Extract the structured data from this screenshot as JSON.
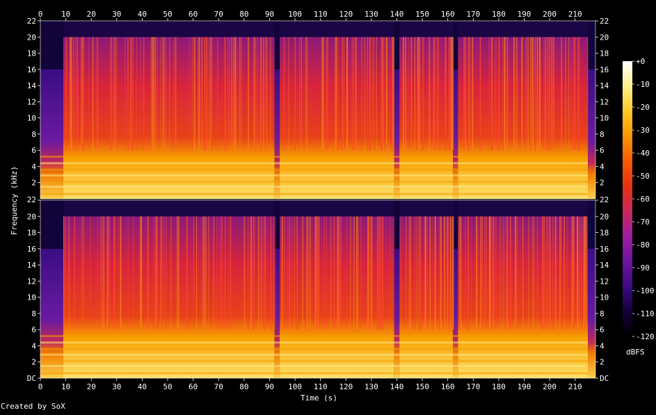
{
  "chart_data": {
    "type": "heatmap",
    "title": "",
    "xlabel": "Time (s)",
    "ylabel": "Frequency (kHz)",
    "x_ticks": [
      "0",
      "10",
      "20",
      "30",
      "40",
      "50",
      "60",
      "70",
      "80",
      "90",
      "100",
      "110",
      "120",
      "130",
      "140",
      "150",
      "160",
      "170",
      "180",
      "190",
      "200",
      "210"
    ],
    "xlim": [
      0,
      218
    ],
    "ylim_khz": [
      0,
      22
    ],
    "y_ticks": [
      "DC",
      "2",
      "4",
      "6",
      "8",
      "10",
      "12",
      "14",
      "16",
      "18",
      "20",
      "22"
    ],
    "channels": [
      {
        "name": "channel-1"
      },
      {
        "name": "channel-2"
      }
    ],
    "colorbar": {
      "label": "dBFS",
      "ticks": [
        "+0",
        "-10",
        "-20",
        "-30",
        "-40",
        "-50",
        "-60",
        "-70",
        "-80",
        "-90",
        "-100",
        "-110",
        "-120"
      ],
      "range_db": [
        -120,
        0
      ],
      "colors": [
        "#000000",
        "#14003c",
        "#3c0a82",
        "#6e14a0",
        "#9e1e9e",
        "#c8285a",
        "#e63214",
        "#f55a00",
        "#fa9600",
        "#fcc828",
        "#fef08c",
        "#ffffff"
      ]
    },
    "segments_s": [
      {
        "start": 0,
        "end": 9,
        "cutoff_khz": 16,
        "level": "low"
      },
      {
        "start": 9,
        "end": 92,
        "cutoff_khz": 20,
        "level": "high"
      },
      {
        "start": 92,
        "end": 94,
        "cutoff_khz": 16,
        "level": "low"
      },
      {
        "start": 94,
        "end": 139,
        "cutoff_khz": 20,
        "level": "high"
      },
      {
        "start": 139,
        "end": 141,
        "cutoff_khz": 16,
        "level": "low"
      },
      {
        "start": 141,
        "end": 162,
        "cutoff_khz": 20,
        "level": "high"
      },
      {
        "start": 162,
        "end": 164,
        "cutoff_khz": 16,
        "level": "low"
      },
      {
        "start": 164,
        "end": 215,
        "cutoff_khz": 20,
        "level": "high"
      },
      {
        "start": 215,
        "end": 218,
        "cutoff_khz": 16,
        "level": "fade"
      }
    ]
  },
  "footer": {
    "credit": "Created by SoX"
  }
}
